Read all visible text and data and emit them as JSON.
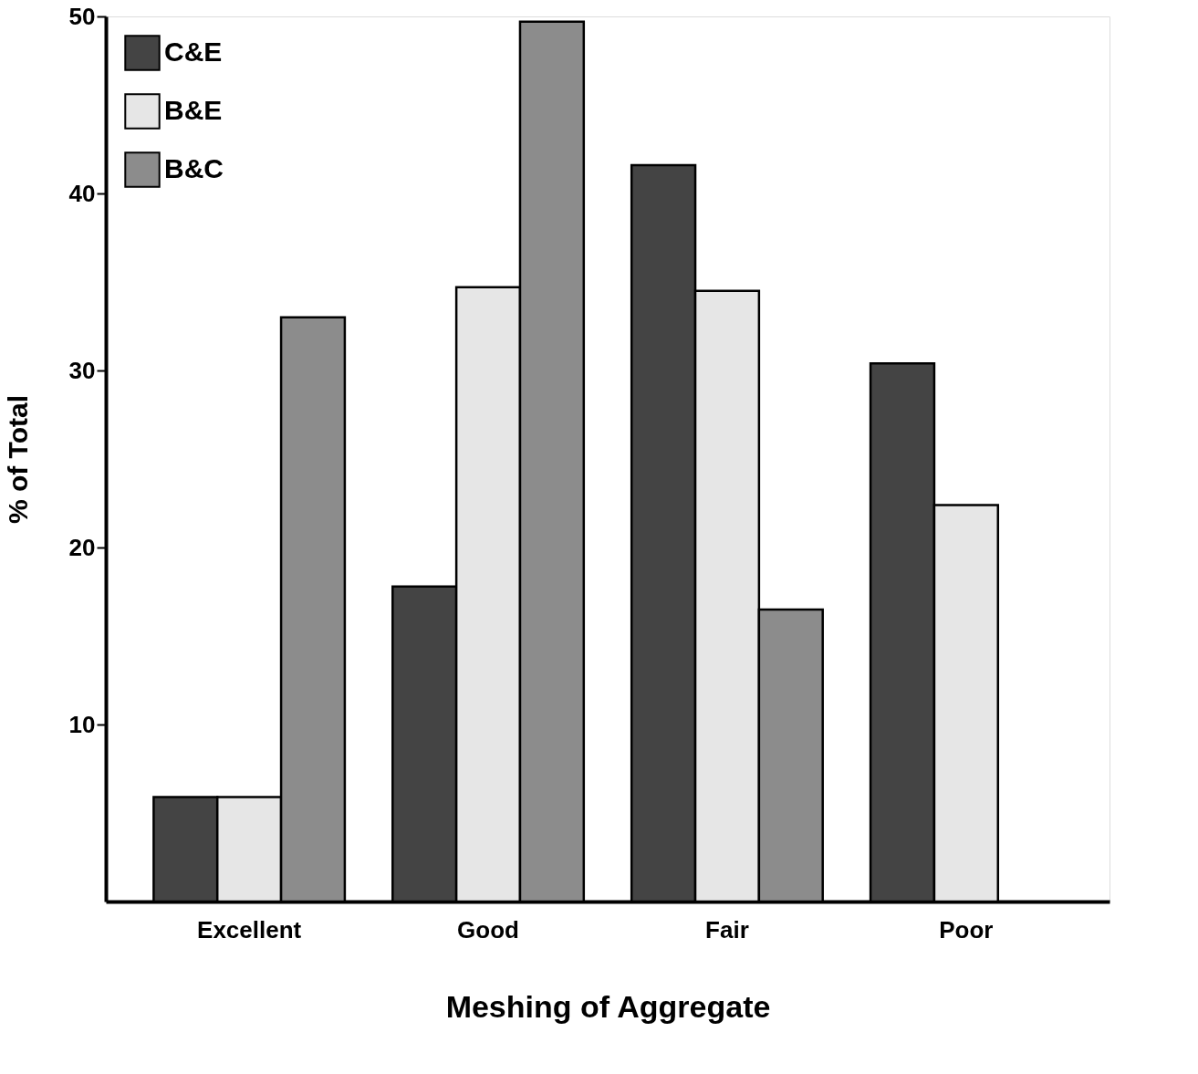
{
  "chart_data": {
    "type": "bar",
    "xlabel": "Meshing of Aggregate",
    "ylabel": "% of Total",
    "categories": [
      "Excellent",
      "Good",
      "Fair",
      "Poor"
    ],
    "series": [
      {
        "name": "C&E",
        "color": "#444444",
        "values": [
          5.9,
          17.8,
          41.6,
          30.4
        ]
      },
      {
        "name": "B&E",
        "color": "#e6e6e6",
        "values": [
          5.9,
          34.7,
          34.5,
          22.4
        ]
      },
      {
        "name": "B&C",
        "color": "#8c8c8c",
        "values": [
          33.0,
          49.7,
          16.5,
          null
        ]
      }
    ],
    "ylim": [
      0,
      50
    ],
    "yticks": [
      10,
      20,
      30,
      40,
      50
    ],
    "grid": false,
    "legend": "top left"
  }
}
